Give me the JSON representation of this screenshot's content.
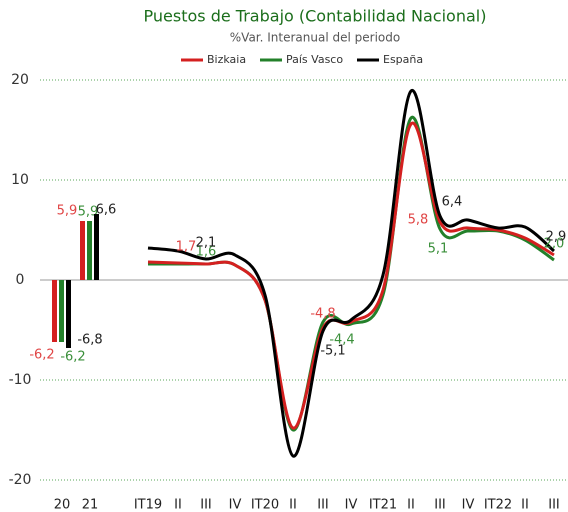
{
  "chart_data": [
    {
      "type": "bar",
      "title": "Puestos de Trabajo (Contabilidad Nacional)",
      "subtitle": "%Var. Interanual del periodo",
      "categories": [
        "20",
        "21"
      ],
      "series": [
        {
          "name": "Bizkaia",
          "color": "#d42020",
          "values": [
            -6.2,
            5.9
          ],
          "value_labels": [
            "-6,2",
            "5,9"
          ]
        },
        {
          "name": "País Vasco",
          "color": "#23802a",
          "values": [
            -6.2,
            5.9
          ],
          "value_labels": [
            "-6,2",
            "5,9"
          ]
        },
        {
          "name": "España",
          "color": "#000000",
          "values": [
            -6.8,
            6.6
          ],
          "value_labels": [
            "-6,8",
            "6,6"
          ]
        }
      ],
      "ylim": [
        -20,
        20
      ],
      "yticks": [
        -20,
        -10,
        0,
        10,
        20
      ],
      "grid": true
    },
    {
      "type": "line",
      "categories": [
        "IT19",
        "II",
        "III",
        "IV",
        "IT20",
        "II",
        "III",
        "IV",
        "IT21",
        "II",
        "III",
        "IV",
        "IT22",
        "II",
        "III"
      ],
      "series": [
        {
          "name": "Bizkaia",
          "color": "#d42020",
          "values": [
            1.8,
            1.7,
            1.6,
            1.5,
            -2.0,
            -14.8,
            -4.8,
            -4.2,
            -1.0,
            15.6,
            5.8,
            5.2,
            5.0,
            4.2,
            2.5
          ],
          "value_labels": [
            null,
            "1,7",
            null,
            null,
            null,
            null,
            "-4,8",
            null,
            null,
            null,
            "5,8",
            null,
            null,
            null,
            null
          ]
        },
        {
          "name": "País Vasco",
          "color": "#23802a",
          "values": [
            1.6,
            1.6,
            1.6,
            1.5,
            -2.0,
            -15.0,
            -4.2,
            -4.4,
            -1.5,
            16.2,
            5.1,
            4.9,
            4.9,
            4.0,
            2.0
          ],
          "value_labels": [
            null,
            null,
            "1,6",
            null,
            null,
            null,
            null,
            "-4,4",
            null,
            null,
            "5,1",
            null,
            null,
            null,
            "2,0"
          ]
        },
        {
          "name": "España",
          "color": "#000000",
          "values": [
            3.2,
            2.9,
            2.1,
            2.5,
            -1.5,
            -17.6,
            -5.1,
            -4.0,
            0.5,
            18.9,
            6.4,
            6.0,
            5.2,
            5.3,
            2.9
          ],
          "value_labels": [
            null,
            null,
            "2,1",
            null,
            null,
            null,
            "-5,1",
            null,
            null,
            null,
            "6,4",
            null,
            null,
            null,
            "2,9"
          ]
        }
      ],
      "ylim": [
        -20,
        20
      ]
    }
  ]
}
